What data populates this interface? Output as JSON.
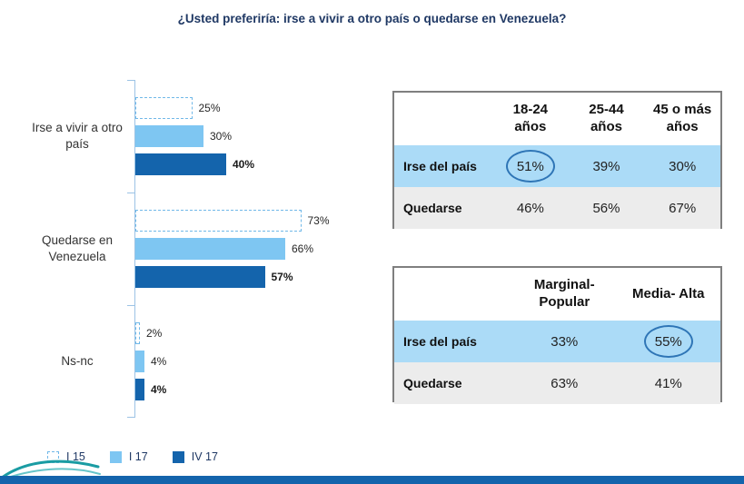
{
  "title": "¿Usted preferiría: irse a  vivir a otro país o quedarse en Venezuela?",
  "colors": {
    "dark_blue": "#1464AC",
    "light_blue": "#7EC6F2",
    "dashed_outline": "#70B8E8",
    "table_highlight_row": "#ABDBF7",
    "table_gray_row": "#ECECEC",
    "circle_annotation": "#2E75B6",
    "title_text": "#1F3864"
  },
  "chart_data": {
    "type": "bar",
    "orientation": "horizontal",
    "title": "¿Usted preferiría: irse a  vivir a otro país o quedarse en Venezuela?",
    "categories": [
      "Irse a vivir a otro país",
      "Quedarse en Venezuela",
      "Ns-nc"
    ],
    "series": [
      {
        "name": "I 15",
        "style": "dashed-outline",
        "values": [
          25,
          73,
          2
        ]
      },
      {
        "name": "I 17",
        "style": "light-blue",
        "values": [
          30,
          66,
          4
        ]
      },
      {
        "name": "IV 17",
        "style": "dark-blue",
        "values": [
          40,
          57,
          4
        ]
      }
    ],
    "value_suffix": "%",
    "xlim": [
      0,
      100
    ],
    "legend_position": "bottom",
    "grid": false
  },
  "table_age": {
    "headers": [
      "",
      "18-24 años",
      "25-44 años",
      "45 o más años"
    ],
    "rows": [
      {
        "label": "Irse del país",
        "values": [
          "51%",
          "39%",
          "30%"
        ],
        "circled": 0
      },
      {
        "label": "Quedarse",
        "values": [
          "46%",
          "56%",
          "67%"
        ],
        "circled": null
      }
    ]
  },
  "table_class": {
    "headers": [
      "",
      "Marginal-Popular",
      "Media- Alta"
    ],
    "rows": [
      {
        "label": "Irse del país",
        "values": [
          "33%",
          "55%"
        ],
        "circled": 1
      },
      {
        "label": "Quedarse",
        "values": [
          "63%",
          "41%"
        ],
        "circled": null
      }
    ]
  }
}
